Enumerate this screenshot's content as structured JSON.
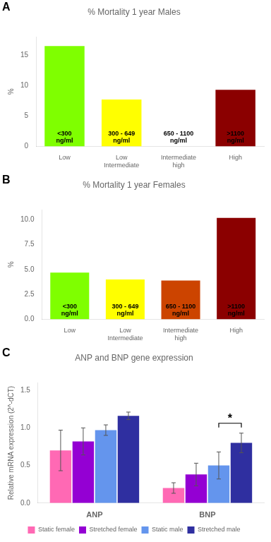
{
  "chart_data": [
    {
      "type": "bar",
      "title": "% Mortality 1 year Males",
      "categories": [
        "Low",
        "Low Intermediate",
        "Intermediate high",
        "High"
      ],
      "values": [
        16.5,
        7.7,
        0.0,
        9.3
      ],
      "colors": [
        "#7FFF00",
        "#FFFF00",
        "#FFFFFF",
        "#8B0000"
      ],
      "ylabel": "%",
      "ylim": [
        0,
        18
      ],
      "yticks": [
        0,
        5,
        10,
        15
      ],
      "grid": false,
      "annotations": [
        {
          "text": "A"
        },
        {
          "text": "<300\nng/ml",
          "category": "Low"
        },
        {
          "text": "300 - 649\nng/ml",
          "category": "Low Intermediate"
        },
        {
          "text": "650 - 1100\nng/ml",
          "category": "Intermediate high"
        },
        {
          "text": ">1100\nng/ml",
          "category": "High"
        }
      ]
    },
    {
      "type": "bar",
      "title": "% Mortality 1 year Females",
      "categories": [
        "Low",
        "Low Intermediate",
        "Intermediate high",
        "High"
      ],
      "values": [
        4.7,
        4.0,
        3.9,
        10.2
      ],
      "colors": [
        "#7FFF00",
        "#FFFF00",
        "#CC4400",
        "#8B0000"
      ],
      "ylabel": "%",
      "ylim": [
        0,
        11
      ],
      "yticks": [
        {
          "value": 0,
          "label": "0.0"
        },
        2.5,
        {
          "value": 5,
          "label": "5.0"
        },
        7.5,
        {
          "value": 10,
          "label": "10.0"
        }
      ],
      "grid": false,
      "annotations": [
        {
          "text": "B"
        },
        {
          "text": "<300\nng/ml",
          "category": "Low"
        },
        {
          "text": "300 - 649\nng/ml",
          "category": "Low Intermediate"
        },
        {
          "text": "650 - 1100\nng/ml",
          "category": "Intermediate high"
        },
        {
          "text": ">1100\nng/ml",
          "category": "High"
        }
      ]
    },
    {
      "type": "bar",
      "title": "ANP and BNP gene expression",
      "categories": [
        "ANP",
        "BNP"
      ],
      "series": [
        {
          "name": "Static female",
          "color": "#FF69B4",
          "values": [
            0.7,
            0.2
          ],
          "errors": [
            0.27,
            0.07
          ]
        },
        {
          "name": "Stretched female",
          "color": "#9400D3",
          "values": [
            0.82,
            0.38
          ],
          "errors": [
            0.18,
            0.15
          ]
        },
        {
          "name": "Static male",
          "color": "#6495ED",
          "values": [
            0.97,
            0.5
          ],
          "errors": [
            0.07,
            0.18
          ]
        },
        {
          "name": "Stretched male",
          "color": "#2F2FA0",
          "values": [
            1.16,
            0.8
          ],
          "errors": [
            0.05,
            0.13
          ]
        }
      ],
      "ylabel": "Relative mRNA expression (2^-dCT)",
      "ylim": [
        0,
        1.6
      ],
      "yticks": [
        {
          "value": 0,
          "label": "0.0"
        },
        0.5,
        {
          "value": 1,
          "label": "1.0"
        },
        1.5
      ],
      "grid": false,
      "legend": "bottom",
      "annotations": [
        {
          "text": "C"
        },
        {
          "text": "*",
          "category": "BNP",
          "series": [
            "Static male",
            "Stretched male"
          ]
        }
      ]
    }
  ]
}
